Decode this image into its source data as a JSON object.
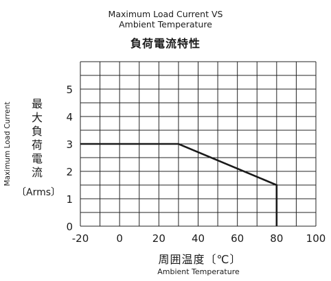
{
  "chart_data": {
    "type": "line",
    "title_lines": [
      "Maximum Load Current VS",
      "Ambient Temperature"
    ],
    "title_ja": "負荷電流特性",
    "ylabel_en": "Maximum Load Current",
    "ylabel_ja": "最大負荷電流",
    "ylabel_unit": "〔Arms〕",
    "xlabel_ja": "周囲温度〔℃〕",
    "xlabel_en": "Ambient Temperature",
    "xlim": [
      -20,
      100
    ],
    "ylim": [
      0,
      6
    ],
    "xticks": [
      -20,
      0,
      20,
      40,
      60,
      80,
      100
    ],
    "yticks": [
      0,
      1,
      2,
      3,
      4,
      5
    ],
    "x_grid_step": 10,
    "y_grid_step": 0.5,
    "grid": true,
    "series": [
      {
        "x": [
          -20,
          30,
          80,
          80
        ],
        "y": [
          3,
          3,
          1.5,
          0
        ]
      }
    ],
    "line_color": "#1a1a1a"
  }
}
